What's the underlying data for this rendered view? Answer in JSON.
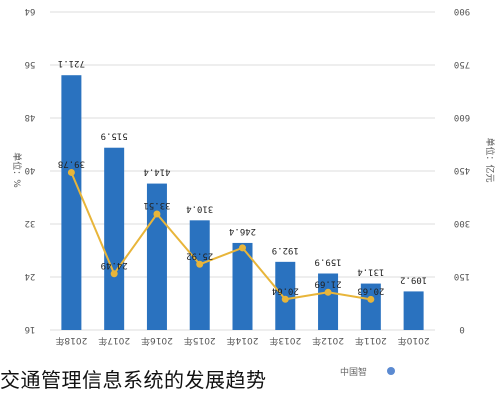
{
  "colors": {
    "bar": "#2a72bf",
    "line": "#e8b53a",
    "grid": "#dedede"
  },
  "caption": "交通管理信息系统的发展趋势",
  "source": "中国智",
  "chart_data": {
    "type": "bar",
    "categories": [
      "2018年",
      "2017年",
      "2016年",
      "2015年",
      "2014年",
      "2013年",
      "2012年",
      "2011年",
      "2010年"
    ],
    "series": [
      {
        "type": "bar",
        "axis": "right",
        "values": [
          721.1,
          515.9,
          414.4,
          310.4,
          246.4,
          192.9,
          159.9,
          131.4,
          109.2
        ]
      },
      {
        "type": "line",
        "axis": "left",
        "values": [
          39.78,
          24.49,
          33.51,
          25.92,
          28.4,
          20.64,
          21.69,
          20.63,
          null
        ],
        "labels": [
          "39.78",
          "24.49",
          "33.51",
          "25.92",
          "",
          "20.64",
          "21.69",
          "20.63",
          ""
        ]
      }
    ],
    "left_axis": {
      "label": "单位：%",
      "ylim": [
        16,
        64
      ],
      "ticks": [
        "16",
        "24",
        "32",
        "40",
        "48",
        "56",
        "64"
      ]
    },
    "right_axis": {
      "label": "单位：亿元",
      "ylim": [
        0,
        900
      ],
      "ticks": [
        "0",
        "150",
        "300",
        "450",
        "600",
        "750",
        "900"
      ]
    },
    "orientation": "upside-down (image rotated 180°)",
    "grid": true
  }
}
